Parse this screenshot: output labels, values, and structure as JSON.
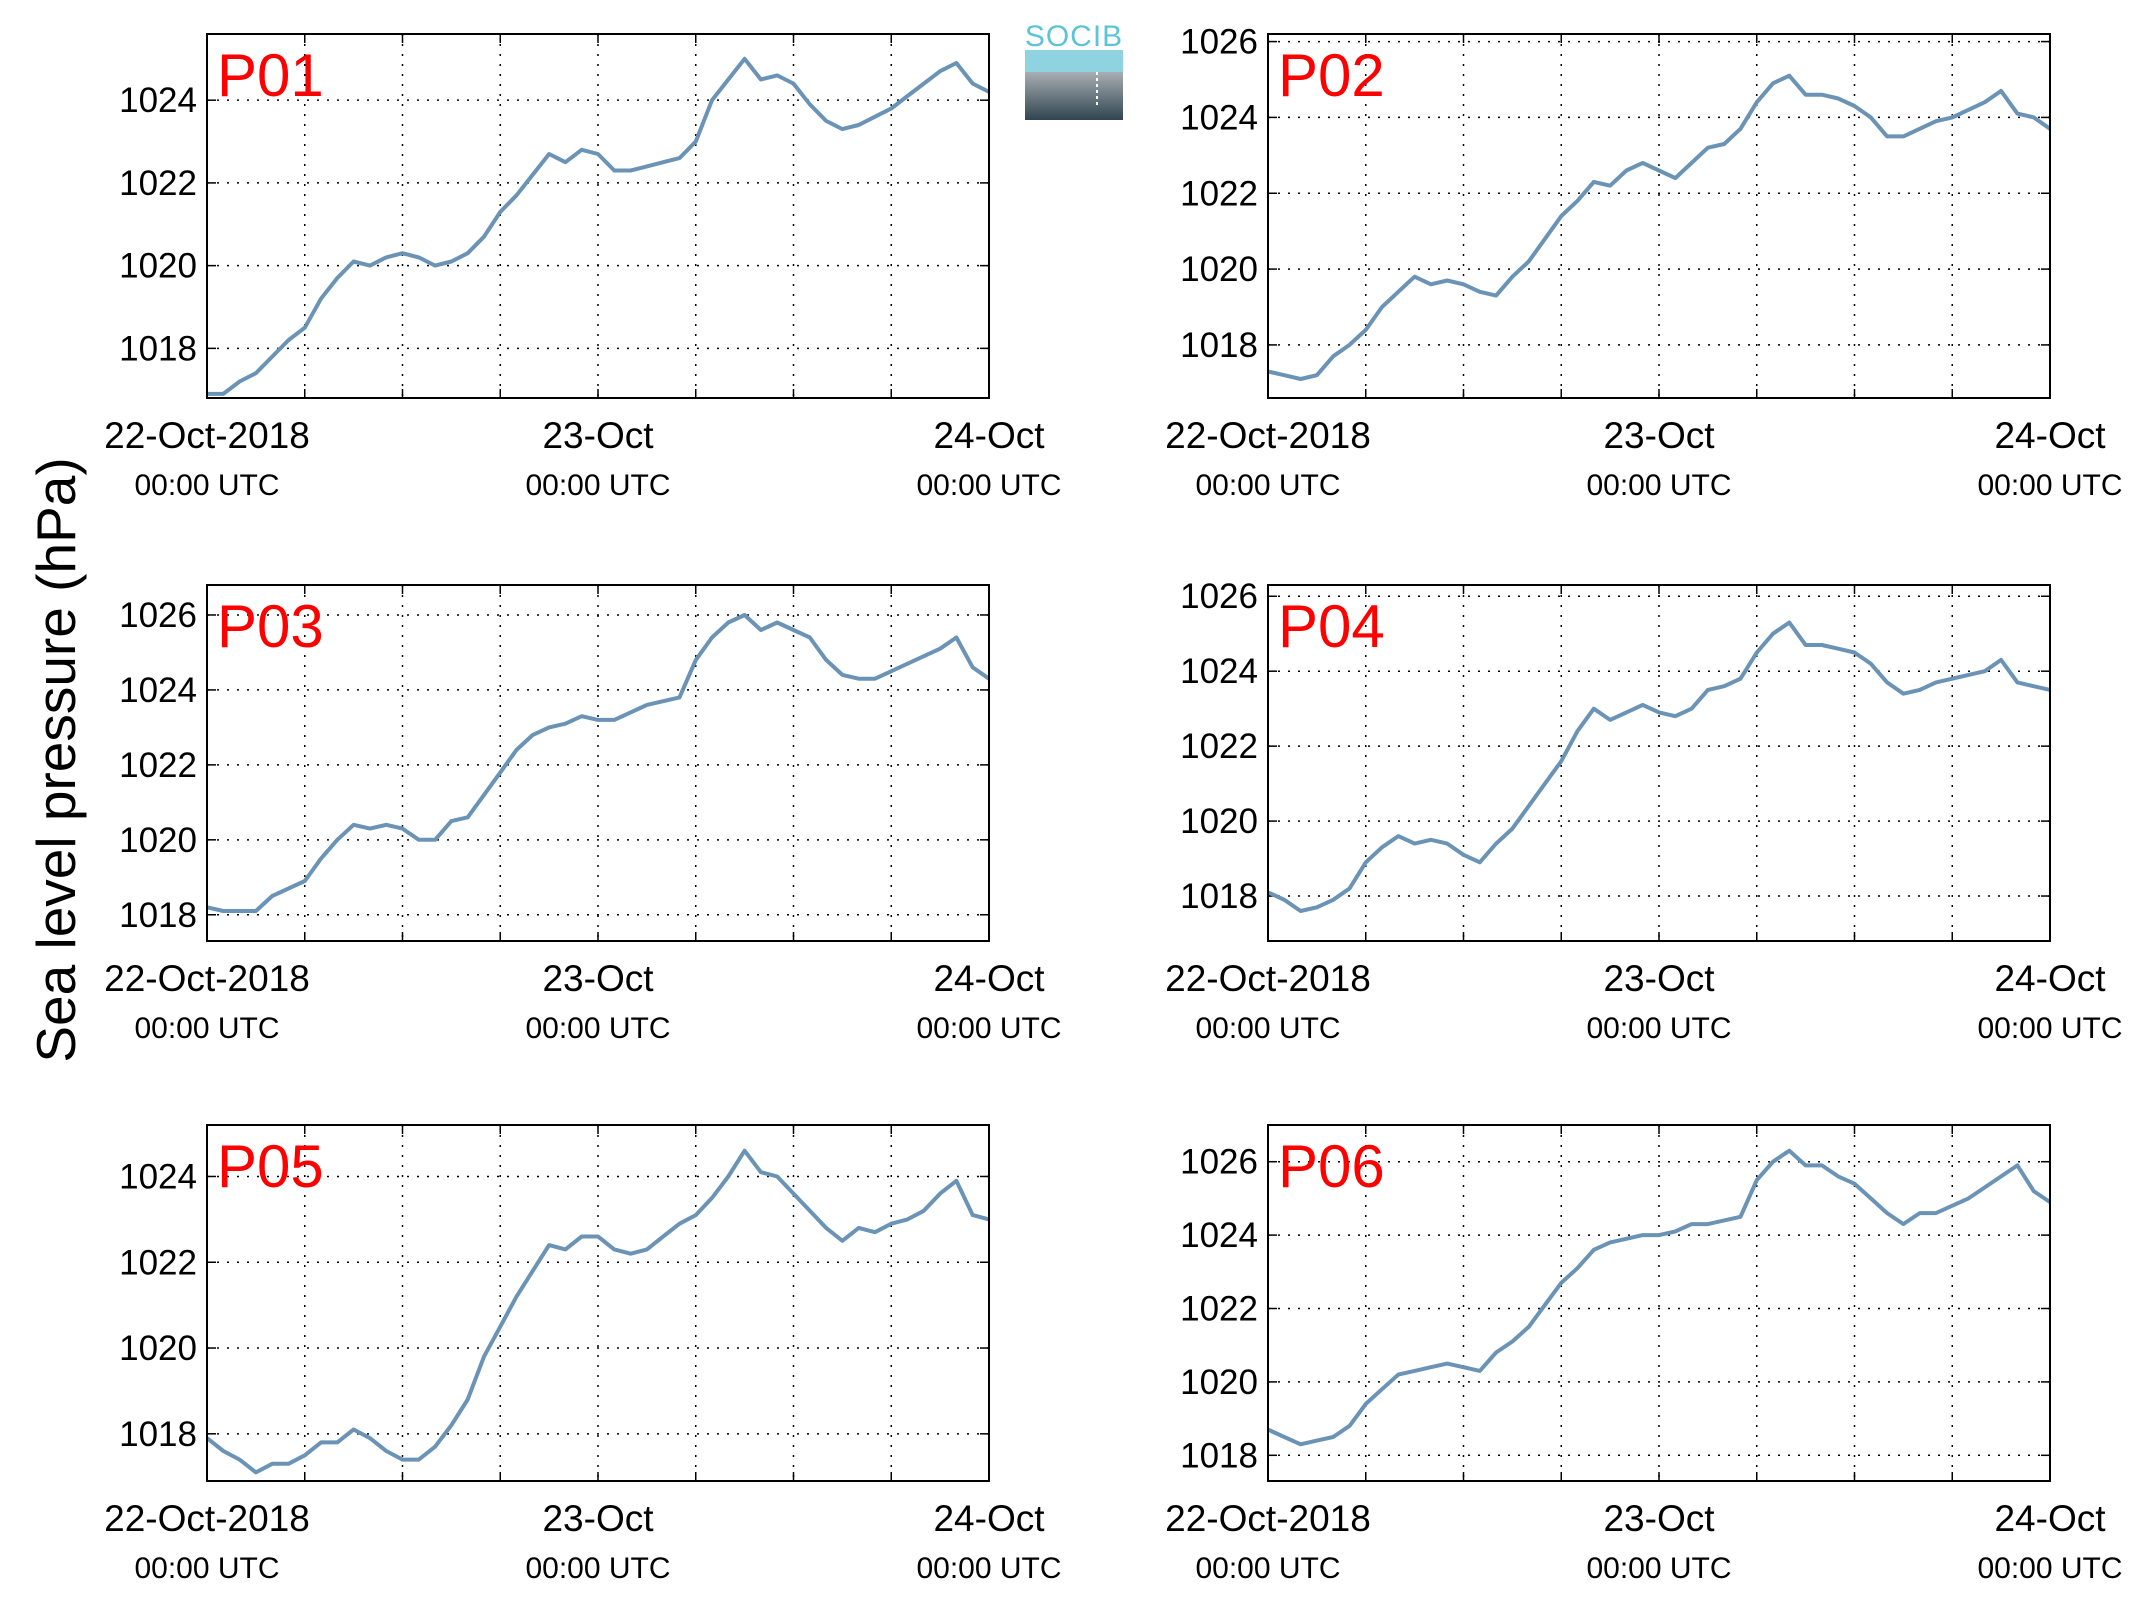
{
  "figure": {
    "ylabel": "Sea level pressure (hPa)",
    "logo_text": "SOCIB",
    "line_color": "#6a93b6",
    "label_color": "#ff0000"
  },
  "chart_data": [
    {
      "type": "line",
      "title": "P01",
      "xlabel": "",
      "ylabel": "Sea level pressure (hPa)",
      "xlim": [
        0,
        48
      ],
      "ylim": [
        1016.8,
        1025.6
      ],
      "yticks": [
        1018,
        1020,
        1022,
        1024
      ],
      "xtick_labels": [
        {
          "t": 0,
          "main": "22-Oct-2018",
          "sub": "00:00 UTC"
        },
        {
          "t": 24,
          "main": "23-Oct",
          "sub": "00:00 UTC"
        },
        {
          "t": 48,
          "main": "24-Oct",
          "sub": "00:00 UTC"
        }
      ],
      "grid": true,
      "series": [
        {
          "x": [
            0,
            1,
            2,
            3,
            4,
            5,
            6,
            7,
            8,
            9,
            10,
            11,
            12,
            13,
            14,
            15,
            16,
            17,
            18,
            19,
            20,
            21,
            22,
            23,
            24,
            25,
            26,
            27,
            28,
            29,
            30,
            31,
            32,
            33,
            34,
            35,
            36,
            37,
            38,
            39,
            40,
            41,
            42,
            43,
            44,
            45,
            46,
            47,
            48
          ],
          "y": [
            1016.9,
            1016.9,
            1017.2,
            1017.4,
            1017.8,
            1018.2,
            1018.5,
            1019.2,
            1019.7,
            1020.1,
            1020.0,
            1020.2,
            1020.3,
            1020.2,
            1020.0,
            1020.1,
            1020.3,
            1020.7,
            1021.3,
            1021.7,
            1022.2,
            1022.7,
            1022.5,
            1022.8,
            1022.7,
            1022.3,
            1022.3,
            1022.4,
            1022.5,
            1022.6,
            1023.0,
            1024.0,
            1024.5,
            1025.0,
            1024.5,
            1024.6,
            1024.4,
            1023.9,
            1023.5,
            1023.3,
            1023.4,
            1023.6,
            1023.8,
            1024.1,
            1024.4,
            1024.7,
            1024.9,
            1024.4,
            1024.2
          ]
        }
      ]
    },
    {
      "type": "line",
      "title": "P02",
      "xlabel": "",
      "ylabel": "Sea level pressure (hPa)",
      "xlim": [
        0,
        48
      ],
      "ylim": [
        1016.6,
        1026.2
      ],
      "yticks": [
        1018,
        1020,
        1022,
        1024,
        1026
      ],
      "xtick_labels": [
        {
          "t": 0,
          "main": "22-Oct-2018",
          "sub": "00:00 UTC"
        },
        {
          "t": 24,
          "main": "23-Oct",
          "sub": "00:00 UTC"
        },
        {
          "t": 48,
          "main": "24-Oct",
          "sub": "00:00 UTC"
        }
      ],
      "grid": true,
      "series": [
        {
          "x": [
            0,
            1,
            2,
            3,
            4,
            5,
            6,
            7,
            8,
            9,
            10,
            11,
            12,
            13,
            14,
            15,
            16,
            17,
            18,
            19,
            20,
            21,
            22,
            23,
            24,
            25,
            26,
            27,
            28,
            29,
            30,
            31,
            32,
            33,
            34,
            35,
            36,
            37,
            38,
            39,
            40,
            41,
            42,
            43,
            44,
            45,
            46,
            47,
            48
          ],
          "y": [
            1017.3,
            1017.2,
            1017.1,
            1017.2,
            1017.7,
            1018.0,
            1018.4,
            1019.0,
            1019.4,
            1019.8,
            1019.6,
            1019.7,
            1019.6,
            1019.4,
            1019.3,
            1019.8,
            1020.2,
            1020.8,
            1021.4,
            1021.8,
            1022.3,
            1022.2,
            1022.6,
            1022.8,
            1022.6,
            1022.4,
            1022.8,
            1023.2,
            1023.3,
            1023.7,
            1024.4,
            1024.9,
            1025.1,
            1024.6,
            1024.6,
            1024.5,
            1024.3,
            1024.0,
            1023.5,
            1023.5,
            1023.7,
            1023.9,
            1024.0,
            1024.2,
            1024.4,
            1024.7,
            1024.1,
            1024.0,
            1023.7
          ]
        }
      ]
    },
    {
      "type": "line",
      "title": "P03",
      "xlabel": "",
      "ylabel": "Sea level pressure (hPa)",
      "xlim": [
        0,
        48
      ],
      "ylim": [
        1017.3,
        1026.8
      ],
      "yticks": [
        1018,
        1020,
        1022,
        1024,
        1026
      ],
      "xtick_labels": [
        {
          "t": 0,
          "main": "22-Oct-2018",
          "sub": "00:00 UTC"
        },
        {
          "t": 24,
          "main": "23-Oct",
          "sub": "00:00 UTC"
        },
        {
          "t": 48,
          "main": "24-Oct",
          "sub": "00:00 UTC"
        }
      ],
      "grid": true,
      "series": [
        {
          "x": [
            0,
            1,
            2,
            3,
            4,
            5,
            6,
            7,
            8,
            9,
            10,
            11,
            12,
            13,
            14,
            15,
            16,
            17,
            18,
            19,
            20,
            21,
            22,
            23,
            24,
            25,
            26,
            27,
            28,
            29,
            30,
            31,
            32,
            33,
            34,
            35,
            36,
            37,
            38,
            39,
            40,
            41,
            42,
            43,
            44,
            45,
            46,
            47,
            48
          ],
          "y": [
            1018.2,
            1018.1,
            1018.1,
            1018.1,
            1018.5,
            1018.7,
            1018.9,
            1019.5,
            1020.0,
            1020.4,
            1020.3,
            1020.4,
            1020.3,
            1020.0,
            1020.0,
            1020.5,
            1020.6,
            1021.2,
            1021.8,
            1022.4,
            1022.8,
            1023.0,
            1023.1,
            1023.3,
            1023.2,
            1023.2,
            1023.4,
            1023.6,
            1023.7,
            1023.8,
            1024.8,
            1025.4,
            1025.8,
            1026.0,
            1025.6,
            1025.8,
            1025.6,
            1025.4,
            1024.8,
            1024.4,
            1024.3,
            1024.3,
            1024.5,
            1024.7,
            1024.9,
            1025.1,
            1025.4,
            1024.6,
            1024.3
          ]
        }
      ]
    },
    {
      "type": "line",
      "title": "P04",
      "xlabel": "",
      "ylabel": "Sea level pressure (hPa)",
      "xlim": [
        0,
        48
      ],
      "ylim": [
        1016.8,
        1026.3
      ],
      "yticks": [
        1018,
        1020,
        1022,
        1024,
        1026
      ],
      "xtick_labels": [
        {
          "t": 0,
          "main": "22-Oct-2018",
          "sub": "00:00 UTC"
        },
        {
          "t": 24,
          "main": "23-Oct",
          "sub": "00:00 UTC"
        },
        {
          "t": 48,
          "main": "24-Oct",
          "sub": "00:00 UTC"
        }
      ],
      "grid": true,
      "series": [
        {
          "x": [
            0,
            1,
            2,
            3,
            4,
            5,
            6,
            7,
            8,
            9,
            10,
            11,
            12,
            13,
            14,
            15,
            16,
            17,
            18,
            19,
            20,
            21,
            22,
            23,
            24,
            25,
            26,
            27,
            28,
            29,
            30,
            31,
            32,
            33,
            34,
            35,
            36,
            37,
            38,
            39,
            40,
            41,
            42,
            43,
            44,
            45,
            46,
            47,
            48
          ],
          "y": [
            1018.1,
            1017.9,
            1017.6,
            1017.7,
            1017.9,
            1018.2,
            1018.9,
            1019.3,
            1019.6,
            1019.4,
            1019.5,
            1019.4,
            1019.1,
            1018.9,
            1019.4,
            1019.8,
            1020.4,
            1021.0,
            1021.6,
            1022.4,
            1023.0,
            1022.7,
            1022.9,
            1023.1,
            1022.9,
            1022.8,
            1023.0,
            1023.5,
            1023.6,
            1023.8,
            1024.5,
            1025.0,
            1025.3,
            1024.7,
            1024.7,
            1024.6,
            1024.5,
            1024.2,
            1023.7,
            1023.4,
            1023.5,
            1023.7,
            1023.8,
            1023.9,
            1024.0,
            1024.3,
            1023.7,
            1023.6,
            1023.5
          ]
        }
      ]
    },
    {
      "type": "line",
      "title": "P05",
      "xlabel": "",
      "ylabel": "Sea level pressure (hPa)",
      "xlim": [
        0,
        48
      ],
      "ylim": [
        1016.9,
        1025.2
      ],
      "yticks": [
        1018,
        1020,
        1022,
        1024
      ],
      "xtick_labels": [
        {
          "t": 0,
          "main": "22-Oct-2018",
          "sub": "00:00 UTC"
        },
        {
          "t": 24,
          "main": "23-Oct",
          "sub": "00:00 UTC"
        },
        {
          "t": 48,
          "main": "24-Oct",
          "sub": "00:00 UTC"
        }
      ],
      "grid": true,
      "series": [
        {
          "x": [
            0,
            1,
            2,
            3,
            4,
            5,
            6,
            7,
            8,
            9,
            10,
            11,
            12,
            13,
            14,
            15,
            16,
            17,
            18,
            19,
            20,
            21,
            22,
            23,
            24,
            25,
            26,
            27,
            28,
            29,
            30,
            31,
            32,
            33,
            34,
            35,
            36,
            37,
            38,
            39,
            40,
            41,
            42,
            43,
            44,
            45,
            46,
            47,
            48
          ],
          "y": [
            1017.9,
            1017.6,
            1017.4,
            1017.1,
            1017.3,
            1017.3,
            1017.5,
            1017.8,
            1017.8,
            1018.1,
            1017.9,
            1017.6,
            1017.4,
            1017.4,
            1017.7,
            1018.2,
            1018.8,
            1019.8,
            1020.5,
            1021.2,
            1021.8,
            1022.4,
            1022.3,
            1022.6,
            1022.6,
            1022.3,
            1022.2,
            1022.3,
            1022.6,
            1022.9,
            1023.1,
            1023.5,
            1024.0,
            1024.6,
            1024.1,
            1024.0,
            1023.6,
            1023.2,
            1022.8,
            1022.5,
            1022.8,
            1022.7,
            1022.9,
            1023.0,
            1023.2,
            1023.6,
            1023.9,
            1023.1,
            1023.0
          ]
        }
      ]
    },
    {
      "type": "line",
      "title": "P06",
      "xlabel": "",
      "ylabel": "Sea level pressure (hPa)",
      "xlim": [
        0,
        48
      ],
      "ylim": [
        1017.3,
        1027.0
      ],
      "yticks": [
        1018,
        1020,
        1022,
        1024,
        1026
      ],
      "xtick_labels": [
        {
          "t": 0,
          "main": "22-Oct-2018",
          "sub": "00:00 UTC"
        },
        {
          "t": 24,
          "main": "23-Oct",
          "sub": "00:00 UTC"
        },
        {
          "t": 48,
          "main": "24-Oct",
          "sub": "00:00 UTC"
        }
      ],
      "grid": true,
      "series": [
        {
          "x": [
            0,
            1,
            2,
            3,
            4,
            5,
            6,
            7,
            8,
            9,
            10,
            11,
            12,
            13,
            14,
            15,
            16,
            17,
            18,
            19,
            20,
            21,
            22,
            23,
            24,
            25,
            26,
            27,
            28,
            29,
            30,
            31,
            32,
            33,
            34,
            35,
            36,
            37,
            38,
            39,
            40,
            41,
            42,
            43,
            44,
            45,
            46,
            47,
            48
          ],
          "y": [
            1018.7,
            1018.5,
            1018.3,
            1018.4,
            1018.5,
            1018.8,
            1019.4,
            1019.8,
            1020.2,
            1020.3,
            1020.4,
            1020.5,
            1020.4,
            1020.3,
            1020.8,
            1021.1,
            1021.5,
            1022.1,
            1022.7,
            1023.1,
            1023.6,
            1023.8,
            1023.9,
            1024.0,
            1024.0,
            1024.1,
            1024.3,
            1024.3,
            1024.4,
            1024.5,
            1025.5,
            1026.0,
            1026.3,
            1025.9,
            1025.9,
            1025.6,
            1025.4,
            1025.0,
            1024.6,
            1024.3,
            1024.6,
            1024.6,
            1024.8,
            1025.0,
            1025.3,
            1025.6,
            1025.9,
            1025.2,
            1024.9
          ]
        }
      ]
    }
  ]
}
